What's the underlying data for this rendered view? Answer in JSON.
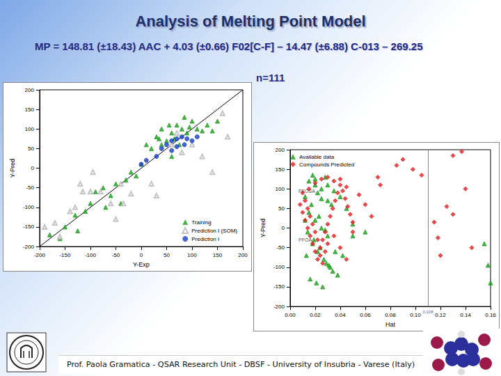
{
  "slide": {
    "title": "Analysis of Melting Point Model",
    "equation": "MP = 148.81 (±18.43) AAC + 4.03 (±0.66) F02[C-F] – 14.47 (±6.88) C-013 – 269.25",
    "sample_size": "n=111",
    "footer": "Prof. Paola Gramatica - QSAR Research Unit - DBSF - University of Insubria - Varese (Italy)"
  },
  "chart_data": [
    {
      "type": "scatter",
      "xlabel": "Y-Exp",
      "ylabel": "Y-Pred",
      "xlim": [
        -200,
        200
      ],
      "ylim": [
        -200,
        200
      ],
      "xticks": [
        -200,
        -150,
        -100,
        -50,
        0,
        50,
        100,
        150,
        200
      ],
      "yticks": [
        -200,
        -150,
        -100,
        -50,
        0,
        50,
        100,
        150,
        200
      ],
      "grid": false,
      "legend": "lower right",
      "series": [
        {
          "name": "Training",
          "color": "#1e9e1e",
          "marker": "triangle",
          "x": [
            -180,
            -150,
            -125,
            -100,
            -90,
            -75,
            -50,
            -30,
            -10,
            0,
            20,
            30,
            40,
            50,
            60,
            70,
            80,
            85,
            90,
            100,
            110,
            120,
            60,
            40,
            -40,
            -60,
            -110,
            -160,
            150,
            140,
            95,
            75,
            55,
            35,
            10,
            -20,
            -70,
            -130,
            130,
            65
          ],
          "values": [
            -170,
            -150,
            -160,
            -90,
            -60,
            -50,
            -40,
            -30,
            -20,
            10,
            50,
            80,
            60,
            70,
            90,
            110,
            100,
            130,
            90,
            120,
            100,
            95,
            30,
            100,
            -90,
            -70,
            -110,
            -180,
            120,
            95,
            105,
            60,
            110,
            75,
            60,
            -10,
            -100,
            -120,
            110,
            75
          ]
        },
        {
          "name": "Prediction I (SOM)",
          "color": "#b5b5b5",
          "marker": "open triangle",
          "x": [
            -190,
            -170,
            -140,
            -120,
            -115,
            -100,
            -80,
            -60,
            -50,
            -35,
            -130,
            -40,
            20,
            60,
            70,
            100,
            120,
            140,
            160,
            170,
            30,
            -20,
            80,
            -160,
            -95
          ],
          "values": [
            -150,
            -140,
            -110,
            -40,
            -60,
            -60,
            -60,
            -90,
            -130,
            -90,
            -100,
            -40,
            -40,
            60,
            90,
            60,
            30,
            -10,
            140,
            80,
            -70,
            -65,
            40,
            -175,
            -10
          ]
        },
        {
          "name": "Prediction I",
          "color": "#1c3fc4",
          "marker": "circle",
          "x": [
            0,
            10,
            30,
            40,
            50,
            60,
            70,
            80,
            90,
            100,
            60,
            85,
            70,
            110
          ],
          "values": [
            10,
            20,
            30,
            50,
            60,
            70,
            75,
            80,
            75,
            70,
            45,
            60,
            55,
            80
          ]
        },
        {
          "type": "line",
          "color": "#000000",
          "line_style": "solid",
          "x": [
            -200,
            200
          ],
          "values": [
            -200,
            200
          ]
        }
      ]
    },
    {
      "type": "scatter",
      "xlabel": "Hat",
      "ylabel": "Y-Pred",
      "xlim": [
        0,
        0.16
      ],
      "ylim": [
        -200,
        200
      ],
      "xticks": [
        {
          "value": 0,
          "label": "0.00"
        },
        {
          "value": 0.02,
          "label": "0.02"
        },
        {
          "value": 0.04,
          "label": "0.04"
        },
        {
          "value": 0.06,
          "label": "0.06"
        },
        {
          "value": 0.08,
          "label": "0.08"
        },
        {
          "value": 0.1,
          "label": "0.10"
        },
        {
          "value": 0.12,
          "label": "0.12"
        },
        {
          "value": 0.14,
          "label": "0.14"
        },
        {
          "value": 0.16,
          "label": "0.16"
        }
      ],
      "yticks": [
        -200,
        -150,
        -100,
        -50,
        0,
        50,
        100,
        150,
        200
      ],
      "grid": false,
      "legend": "upper left",
      "vlines": [
        {
          "x": 0.108,
          "label": "0.108"
        }
      ],
      "annotations": [
        {
          "text": "PFOSA",
          "x": 0.004,
          "y": 95
        },
        {
          "text": "PFOA",
          "x": 0.004,
          "y": -30
        }
      ],
      "series": [
        {
          "name": "Available data",
          "color": "#1e9e1e",
          "marker": "triangle",
          "x": [
            0.012,
            0.015,
            0.018,
            0.02,
            0.022,
            0.025,
            0.028,
            0.03,
            0.033,
            0.035,
            0.04,
            0.045,
            0.015,
            0.02,
            0.025,
            0.03,
            0.018,
            0.022,
            0.027,
            0.032,
            0.038,
            0.042,
            0.05,
            0.014,
            0.019,
            0.024,
            0.029,
            0.034,
            0.016,
            0.021,
            0.026,
            0.031,
            0.036,
            0.017,
            0.023,
            0.028,
            0.05,
            0.06,
            0.155,
            0.158,
            0.16,
            0.012,
            0.013,
            0.02,
            0.025,
            0.03
          ],
          "values": [
            80,
            120,
            135,
            110,
            90,
            100,
            130,
            70,
            60,
            95,
            80,
            50,
            40,
            20,
            0,
            -20,
            -40,
            -60,
            -80,
            -100,
            -120,
            -70,
            10,
            -10,
            -30,
            -50,
            -90,
            -110,
            -130,
            -140,
            -150,
            -95,
            -60,
            60,
            30,
            -5,
            -20,
            -10,
            -40,
            -95,
            -140,
            20,
            -70,
            125,
            75,
            110
          ]
        },
        {
          "name": "Compounds Predicted",
          "color": "#e02020",
          "marker": "diamond",
          "x": [
            0.008,
            0.01,
            0.012,
            0.014,
            0.016,
            0.018,
            0.02,
            0.022,
            0.024,
            0.026,
            0.028,
            0.03,
            0.032,
            0.034,
            0.036,
            0.038,
            0.04,
            0.042,
            0.044,
            0.046,
            0.048,
            0.05,
            0.01,
            0.012,
            0.014,
            0.016,
            0.018,
            0.02,
            0.022,
            0.024,
            0.026,
            0.028,
            0.03,
            0.015,
            0.02,
            0.025,
            0.03,
            0.035,
            0.04,
            0.045,
            0.055,
            0.06,
            0.065,
            0.035,
            0.04,
            0.045,
            0.05,
            0.07,
            0.072,
            0.085,
            0.09,
            0.098,
            0.105,
            0.13,
            0.137,
            0.115,
            0.118,
            0.12,
            0.125,
            0.13,
            0.14,
            0.145
          ],
          "values": [
            60,
            40,
            20,
            0,
            -20,
            -40,
            -60,
            -80,
            -50,
            -30,
            -10,
            10,
            30,
            50,
            70,
            90,
            110,
            95,
            75,
            55,
            35,
            15,
            90,
            70,
            50,
            30,
            10,
            -10,
            -30,
            -70,
            -90,
            -60,
            -40,
            100,
            115,
            125,
            130,
            120,
            125,
            105,
            85,
            60,
            30,
            -20,
            -50,
            -80,
            -10,
            130,
            110,
            160,
            175,
            150,
            135,
            185,
            195,
            15,
            -25,
            -70,
            55,
            35,
            100,
            -50
          ]
        }
      ]
    }
  ]
}
